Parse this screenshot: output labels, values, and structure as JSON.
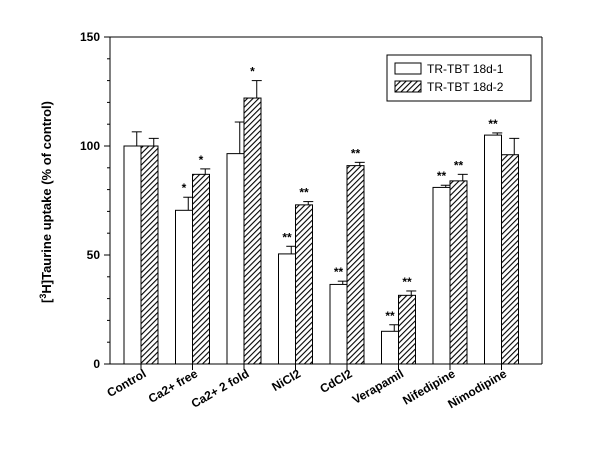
{
  "chart_data": {
    "type": "bar",
    "title": "",
    "xlabel": "",
    "ylabel_prefix": "[",
    "ylabel_sup": "3",
    "ylabel_rest": "H]Taurine uptake (% of control)",
    "ylim": [
      0,
      150
    ],
    "yticks": [
      0,
      50,
      100,
      150
    ],
    "grid": false,
    "legend_position": "top-right",
    "categories": [
      "Control",
      "Ca2+ free",
      "Ca2+ 2 fold",
      "NiCl2",
      "CdCl2",
      "Verapamil",
      "Nifedipine",
      "Nimodipine"
    ],
    "series": [
      {
        "name": "TR-TBT 18d-1",
        "fill": "#ffffff",
        "pattern": "none",
        "values": [
          100,
          70.5,
          96.5,
          50.5,
          36.5,
          15,
          81,
          105
        ],
        "errors": [
          6.5,
          6,
          14.5,
          3.5,
          1.5,
          3,
          1,
          1
        ],
        "significance": [
          "",
          "*",
          "",
          "**",
          "**",
          "**",
          "**",
          "**"
        ]
      },
      {
        "name": "TR-TBT 18d-2",
        "fill": "#ffffff",
        "pattern": "diagonal-hatch",
        "values": [
          100,
          87,
          122,
          73,
          91,
          31.5,
          84,
          96
        ],
        "errors": [
          3.5,
          2.5,
          8,
          1.5,
          1.5,
          2,
          3,
          7.5
        ],
        "significance": [
          "",
          "*",
          "*",
          "**",
          "**",
          "**",
          "**",
          ""
        ]
      }
    ]
  }
}
